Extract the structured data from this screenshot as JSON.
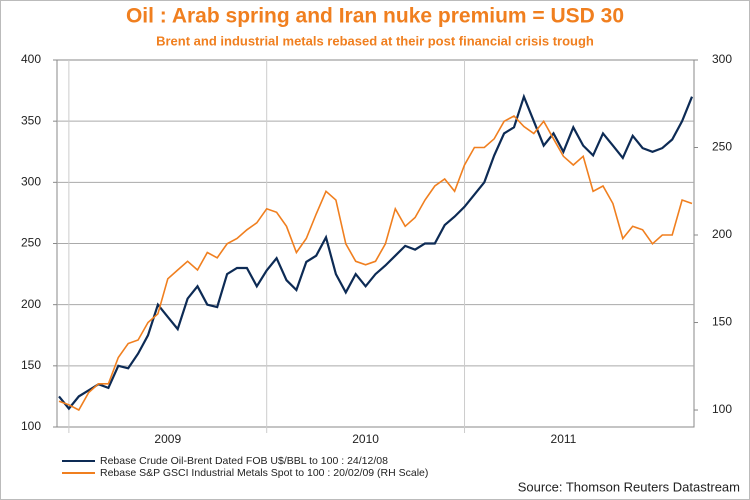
{
  "chart_data": {
    "type": "line",
    "title": "Oil : Arab spring and Iran nuke premium = USD 30",
    "subtitle": "Brent and industrial metals rebased at their post financial crisis trough",
    "source": "Source: Thomson Reuters Datastream",
    "x": [
      2008.95,
      2009.0,
      2009.05,
      2009.1,
      2009.15,
      2009.2,
      2009.25,
      2009.3,
      2009.35,
      2009.4,
      2009.45,
      2009.5,
      2009.55,
      2009.6,
      2009.65,
      2009.7,
      2009.75,
      2009.8,
      2009.85,
      2009.9,
      2009.95,
      2010.0,
      2010.05,
      2010.1,
      2010.15,
      2010.2,
      2010.25,
      2010.3,
      2010.35,
      2010.4,
      2010.45,
      2010.5,
      2010.55,
      2010.6,
      2010.65,
      2010.7,
      2010.75,
      2010.8,
      2010.85,
      2010.9,
      2010.95,
      2011.0,
      2011.05,
      2011.1,
      2011.15,
      2011.2,
      2011.25,
      2011.3,
      2011.35,
      2011.4,
      2011.45,
      2011.5,
      2011.55,
      2011.6,
      2011.65,
      2011.7,
      2011.75,
      2011.8,
      2011.85,
      2011.9,
      2011.95,
      2012.0,
      2012.05,
      2012.1,
      2012.15
    ],
    "series": [
      {
        "name": "Rebase Crude Oil-Brent Dated FOB U$/BBL to 100 : 24/12/08",
        "color": "#0d2b55",
        "values": [
          125,
          115,
          125,
          130,
          135,
          132,
          150,
          148,
          160,
          175,
          200,
          190,
          180,
          205,
          215,
          200,
          198,
          225,
          230,
          230,
          215,
          228,
          238,
          220,
          212,
          235,
          240,
          255,
          225,
          210,
          225,
          215,
          225,
          232,
          240,
          248,
          245,
          250,
          250,
          265,
          272,
          280,
          290,
          300,
          322,
          340,
          345,
          370,
          350,
          330,
          340,
          325,
          345,
          330,
          322,
          340,
          330,
          320,
          338,
          328,
          325,
          328,
          335,
          350,
          370
        ]
      },
      {
        "name": "Rebase S&P GSCI Industrial Metals Spot to 100 : 20/02/09 (RH Scale)",
        "color": "#f07f1f",
        "axis": "y2",
        "values": [
          105,
          103,
          100,
          110,
          115,
          115,
          130,
          138,
          140,
          150,
          155,
          175,
          180,
          185,
          180,
          190,
          187,
          195,
          198,
          203,
          207,
          215,
          213,
          205,
          190,
          198,
          212,
          225,
          220,
          195,
          185,
          183,
          185,
          195,
          215,
          205,
          210,
          220,
          228,
          232,
          225,
          240,
          250,
          250,
          255,
          265,
          268,
          262,
          258,
          265,
          255,
          245,
          240,
          245,
          225,
          228,
          218,
          198,
          205,
          203,
          195,
          200,
          200,
          220,
          218
        ]
      }
    ],
    "xlim": [
      2008.94,
      2012.16
    ],
    "xticks": [
      {
        "value": 2009.5,
        "label": "2009"
      },
      {
        "value": 2010.5,
        "label": "2010"
      },
      {
        "value": 2011.5,
        "label": "2011"
      }
    ],
    "xgrid": [
      2009,
      2010,
      2011
    ],
    "ylim": [
      100,
      400
    ],
    "yticks": [
      100,
      150,
      200,
      250,
      300,
      350,
      400
    ],
    "y2lim": [
      90.3,
      300
    ],
    "y2ticks": [
      100,
      150,
      200,
      250,
      300
    ],
    "grid": true
  }
}
